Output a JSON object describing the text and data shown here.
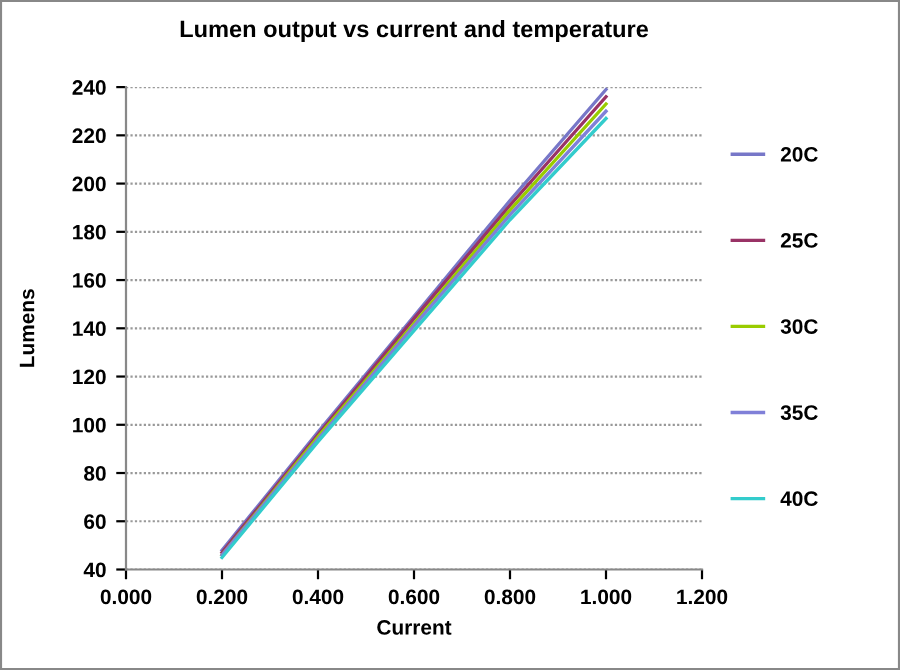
{
  "chart_data": {
    "type": "line",
    "title": "Lumen output vs current and temperature",
    "xlabel": "Current",
    "ylabel": "Lumens",
    "x": [
      0.2,
      0.4,
      0.6,
      0.8,
      1.0
    ],
    "series": [
      {
        "name": "20C",
        "color": "#7777c8",
        "values": [
          48,
          97,
          145,
          193,
          239
        ]
      },
      {
        "name": "25C",
        "color": "#993366",
        "values": [
          47,
          96,
          144,
          191,
          236
        ]
      },
      {
        "name": "30C",
        "color": "#99cc00",
        "values": [
          46,
          95,
          142,
          189,
          233
        ]
      },
      {
        "name": "35C",
        "color": "#8080d8",
        "values": [
          46,
          94,
          141,
          187,
          230
        ]
      },
      {
        "name": "40C",
        "color": "#33cccc",
        "values": [
          45,
          93,
          139,
          185,
          227
        ]
      }
    ],
    "xlim": [
      0,
      1.2
    ],
    "xticks": [
      {
        "value": 0,
        "label": "0.000"
      },
      {
        "value": 0.2,
        "label": "0.200"
      },
      {
        "value": 0.4,
        "label": "0.400"
      },
      {
        "value": 0.6,
        "label": "0.600"
      },
      {
        "value": 0.8,
        "label": "0.800"
      },
      {
        "value": 1.0,
        "label": "1.000"
      },
      {
        "value": 1.2,
        "label": "1.200"
      }
    ],
    "ylim": [
      40,
      240
    ],
    "yticks": [
      40,
      60,
      80,
      100,
      120,
      140,
      160,
      180,
      200,
      220,
      240
    ],
    "grid": "y",
    "legend": "right",
    "marker": "none",
    "line_style": "solid"
  }
}
